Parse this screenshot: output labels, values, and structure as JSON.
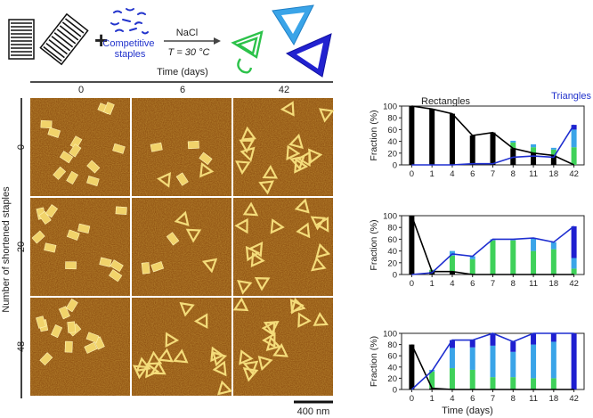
{
  "schematic": {
    "plus": "+",
    "competitive_staples": "Competitive\nstaples",
    "salt": "NaCl",
    "temperature": "T = 30 °C"
  },
  "afm": {
    "time_header": "Time (days)",
    "columns": [
      "0",
      "6",
      "42"
    ],
    "row_axis_label": "Number of shortened staples",
    "rows": [
      "0",
      "20",
      "48"
    ],
    "scale_bar": "400 nm"
  },
  "colors": {
    "rectangles": "#000000",
    "triangles_line": "#1f2fd0",
    "green": "#3fd15a",
    "light_blue": "#3aa4e8",
    "dark_blue": "#1f1fd0",
    "afm_bg": "#8a4a0e"
  },
  "chart_data": [
    {
      "type": "bar",
      "categories": [
        "0",
        "1",
        "4",
        "6",
        "7",
        "8",
        "11",
        "18",
        "42"
      ],
      "ylabel": "Fraction (%)",
      "xlabel": "",
      "ylim": [
        0,
        100
      ],
      "yticks": [
        0,
        20,
        40,
        60,
        80,
        100
      ],
      "annotations": [
        "Rectangles",
        "Triangles"
      ],
      "series": [
        {
          "values": [
            100,
            95,
            87,
            50,
            55,
            28,
            20,
            16,
            0
          ]
        },
        {
          "values": [
            0,
            0,
            0,
            0,
            0,
            10,
            10,
            10,
            30
          ]
        },
        {
          "values": [
            0,
            0,
            0,
            0,
            0,
            3,
            5,
            3,
            30
          ]
        },
        {
          "values": [
            0,
            0,
            0,
            0,
            0,
            0,
            0,
            0,
            8
          ]
        }
      ],
      "lines": [
        {
          "values": [
            100,
            95,
            87,
            50,
            55,
            28,
            20,
            16,
            0
          ]
        },
        {
          "values": [
            0,
            0,
            0,
            2,
            2,
            13,
            15,
            13,
            68
          ]
        }
      ]
    },
    {
      "type": "bar",
      "categories": [
        "0",
        "1",
        "4",
        "6",
        "7",
        "8",
        "11",
        "18",
        "42"
      ],
      "ylabel": "Fraction (%)",
      "xlabel": "",
      "ylim": [
        0,
        100
      ],
      "yticks": [
        0,
        20,
        40,
        60,
        80,
        100
      ],
      "series": [
        {
          "values": [
            100,
            5,
            5,
            0,
            0,
            0,
            0,
            0,
            0
          ]
        },
        {
          "values": [
            0,
            3,
            27,
            26,
            58,
            58,
            40,
            43,
            10
          ]
        },
        {
          "values": [
            0,
            0,
            8,
            5,
            2,
            2,
            22,
            12,
            18
          ]
        },
        {
          "values": [
            0,
            0,
            0,
            0,
            0,
            0,
            0,
            0,
            54
          ]
        }
      ],
      "lines": [
        {
          "values": [
            100,
            5,
            5,
            0,
            0,
            0,
            0,
            0,
            0
          ]
        },
        {
          "values": [
            0,
            3,
            35,
            31,
            60,
            60,
            62,
            55,
            82
          ]
        }
      ]
    },
    {
      "type": "bar",
      "categories": [
        "0",
        "1",
        "4",
        "6",
        "7",
        "8",
        "11",
        "18",
        "42"
      ],
      "ylabel": "Fraction (%)",
      "xlabel": "Time (days)",
      "ylim": [
        0,
        100
      ],
      "yticks": [
        0,
        20,
        40,
        60,
        80,
        100
      ],
      "series": [
        {
          "values": [
            80,
            2,
            0,
            0,
            0,
            0,
            0,
            0,
            0
          ]
        },
        {
          "values": [
            0,
            30,
            38,
            35,
            22,
            22,
            20,
            20,
            0
          ]
        },
        {
          "values": [
            0,
            3,
            36,
            40,
            56,
            45,
            60,
            65,
            0
          ]
        },
        {
          "values": [
            0,
            0,
            14,
            13,
            22,
            18,
            20,
            15,
            100
          ]
        }
      ],
      "lines": [
        {
          "values": [
            80,
            2,
            0,
            0,
            0,
            0,
            0,
            0,
            0
          ]
        },
        {
          "values": [
            0,
            33,
            88,
            88,
            100,
            85,
            100,
            100,
            100
          ]
        }
      ]
    }
  ],
  "chart_xlabel": "Time (days)"
}
